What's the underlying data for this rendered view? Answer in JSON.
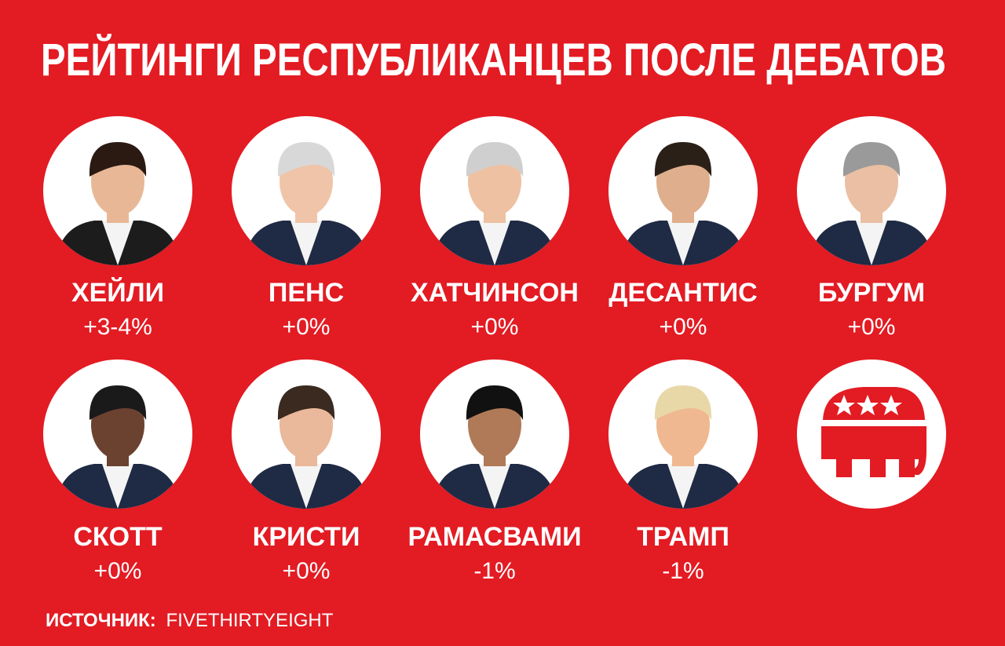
{
  "title": "РЕЙТИНГИ РЕСПУБЛИКАНЦЕВ ПОСЛЕ ДЕБАТОВ",
  "candidates": [
    {
      "name": "ХЕЙЛИ",
      "change": "+3-4%"
    },
    {
      "name": "ПЕНС",
      "change": "+0%"
    },
    {
      "name": "ХАТЧИНСОН",
      "change": "+0%"
    },
    {
      "name": "ДЕСАНТИС",
      "change": "+0%"
    },
    {
      "name": "БУРГУМ",
      "change": "+0%"
    },
    {
      "name": "СКОТТ",
      "change": "+0%"
    },
    {
      "name": "КРИСТИ",
      "change": "+0%"
    },
    {
      "name": "РАМАСВАМИ",
      "change": "-1%"
    },
    {
      "name": "ТРАМП",
      "change": "-1%"
    }
  ],
  "source": {
    "label": "ИСТОЧНИК:",
    "value": "FIVETHIRTYEIGHT"
  }
}
